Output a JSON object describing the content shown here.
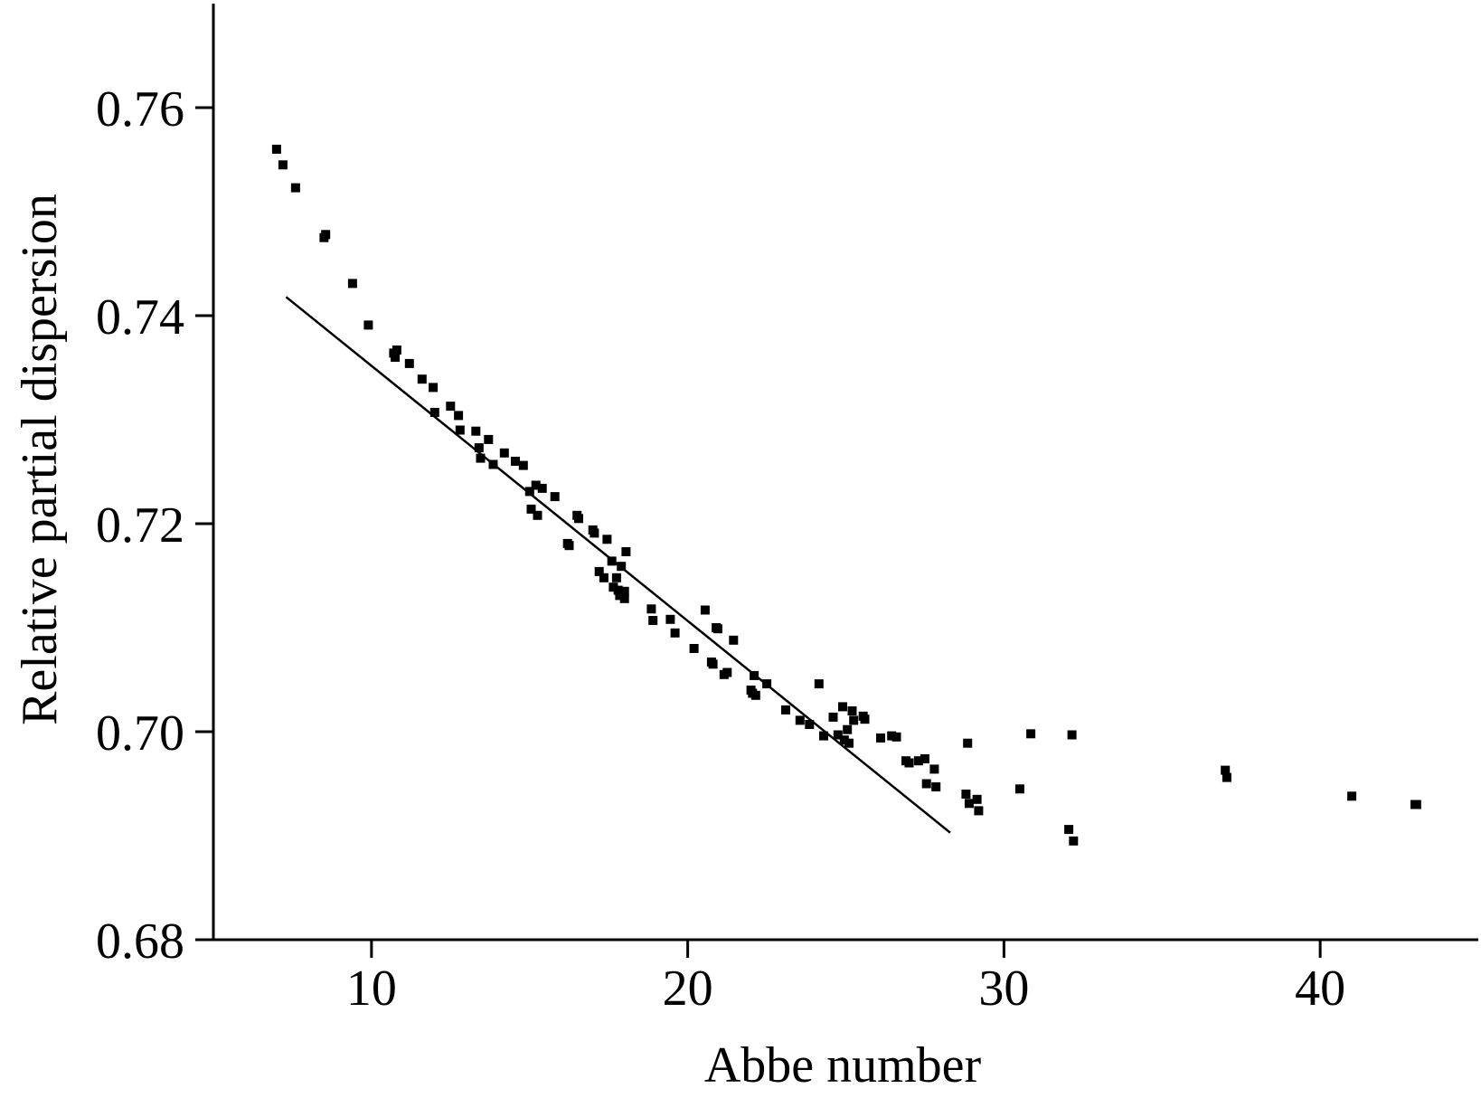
{
  "chart_data": {
    "type": "scatter",
    "title": "",
    "xlabel": "Abbe number",
    "ylabel": "Relative partial dispersion",
    "xlim": [
      5,
      45
    ],
    "ylim": [
      0.68,
      0.77
    ],
    "x_ticks": [
      10,
      20,
      30,
      40
    ],
    "y_ticks": [
      0.68,
      0.7,
      0.72,
      0.74,
      0.76
    ],
    "x_tick_labels": [
      "10",
      "20",
      "30",
      "40"
    ],
    "y_tick_labels": [
      "0.68",
      "0.70",
      "0.72",
      "0.74",
      "0.76"
    ],
    "grid": false,
    "legend": "none",
    "colors": {
      "points": "#000000",
      "line": "#000000",
      "axes": "#000000"
    },
    "series": [
      {
        "type": "scatter",
        "points": [
          [
            7.0,
            0.756
          ],
          [
            7.2,
            0.7545
          ],
          [
            7.6,
            0.7523
          ],
          [
            8.5,
            0.7475
          ],
          [
            8.55,
            0.7478
          ],
          [
            9.4,
            0.7431
          ],
          [
            9.9,
            0.7391
          ],
          [
            10.7,
            0.7364
          ],
          [
            10.75,
            0.736
          ],
          [
            10.8,
            0.7367
          ],
          [
            11.2,
            0.7354
          ],
          [
            11.6,
            0.7339
          ],
          [
            11.95,
            0.7331
          ],
          [
            12.0,
            0.7307
          ],
          [
            12.5,
            0.7313
          ],
          [
            12.75,
            0.7304
          ],
          [
            12.8,
            0.729
          ],
          [
            13.3,
            0.7289
          ],
          [
            13.4,
            0.7273
          ],
          [
            13.45,
            0.7263
          ],
          [
            13.7,
            0.7281
          ],
          [
            13.85,
            0.7257
          ],
          [
            14.2,
            0.7268
          ],
          [
            14.55,
            0.726
          ],
          [
            14.8,
            0.7256
          ],
          [
            15.0,
            0.7231
          ],
          [
            15.05,
            0.7214
          ],
          [
            15.2,
            0.7237
          ],
          [
            15.25,
            0.7208
          ],
          [
            15.4,
            0.7234
          ],
          [
            15.8,
            0.7226
          ],
          [
            16.2,
            0.7181
          ],
          [
            16.25,
            0.7179
          ],
          [
            16.5,
            0.7208
          ],
          [
            16.55,
            0.7205
          ],
          [
            17.0,
            0.7194
          ],
          [
            17.05,
            0.7191
          ],
          [
            17.2,
            0.7154
          ],
          [
            17.35,
            0.7148
          ],
          [
            17.45,
            0.7185
          ],
          [
            17.6,
            0.7164
          ],
          [
            17.65,
            0.7139
          ],
          [
            17.75,
            0.7148
          ],
          [
            17.8,
            0.7136
          ],
          [
            17.85,
            0.7131
          ],
          [
            17.9,
            0.7159
          ],
          [
            18.0,
            0.7135
          ],
          [
            18.0,
            0.7128
          ],
          [
            18.05,
            0.7173
          ],
          [
            18.85,
            0.7118
          ],
          [
            18.9,
            0.7107
          ],
          [
            19.45,
            0.7108
          ],
          [
            19.6,
            0.7095
          ],
          [
            20.2,
            0.708
          ],
          [
            20.55,
            0.7117
          ],
          [
            20.75,
            0.7067
          ],
          [
            20.8,
            0.7065
          ],
          [
            20.9,
            0.71
          ],
          [
            20.95,
            0.7099
          ],
          [
            21.15,
            0.7055
          ],
          [
            21.25,
            0.7057
          ],
          [
            21.45,
            0.7088
          ],
          [
            22.0,
            0.704
          ],
          [
            22.05,
            0.7037
          ],
          [
            22.1,
            0.7054
          ],
          [
            22.15,
            0.7035
          ],
          [
            22.5,
            0.7046
          ],
          [
            23.1,
            0.7021
          ],
          [
            23.55,
            0.7011
          ],
          [
            23.85,
            0.7007
          ],
          [
            24.15,
            0.7046
          ],
          [
            24.3,
            0.6996
          ],
          [
            24.6,
            0.7014
          ],
          [
            24.75,
            0.6997
          ],
          [
            24.9,
            0.7024
          ],
          [
            24.95,
            0.6992
          ],
          [
            25.05,
            0.7002
          ],
          [
            25.1,
            0.6989
          ],
          [
            25.2,
            0.702
          ],
          [
            25.25,
            0.7011
          ],
          [
            25.55,
            0.7015
          ],
          [
            25.6,
            0.7012
          ],
          [
            26.1,
            0.6994
          ],
          [
            26.45,
            0.6996
          ],
          [
            26.6,
            0.6995
          ],
          [
            26.9,
            0.6972
          ],
          [
            27.0,
            0.697
          ],
          [
            27.3,
            0.6972
          ],
          [
            27.5,
            0.6974
          ],
          [
            27.55,
            0.695
          ],
          [
            27.8,
            0.6964
          ],
          [
            27.85,
            0.6947
          ],
          [
            28.8,
            0.694
          ],
          [
            28.85,
            0.6989
          ],
          [
            28.9,
            0.6931
          ],
          [
            29.15,
            0.6935
          ],
          [
            29.2,
            0.6924
          ],
          [
            30.5,
            0.6945
          ],
          [
            30.85,
            0.6998
          ],
          [
            32.05,
            0.6906
          ],
          [
            32.15,
            0.6997
          ],
          [
            32.2,
            0.6895
          ],
          [
            37.0,
            0.6963
          ],
          [
            37.05,
            0.6956
          ],
          [
            41.0,
            0.6938
          ],
          [
            43.0,
            0.693
          ],
          [
            43.05,
            0.693
          ]
        ]
      },
      {
        "type": "line",
        "points": [
          [
            7.3,
            0.7418
          ],
          [
            28.3,
            0.6903
          ]
        ]
      }
    ]
  }
}
